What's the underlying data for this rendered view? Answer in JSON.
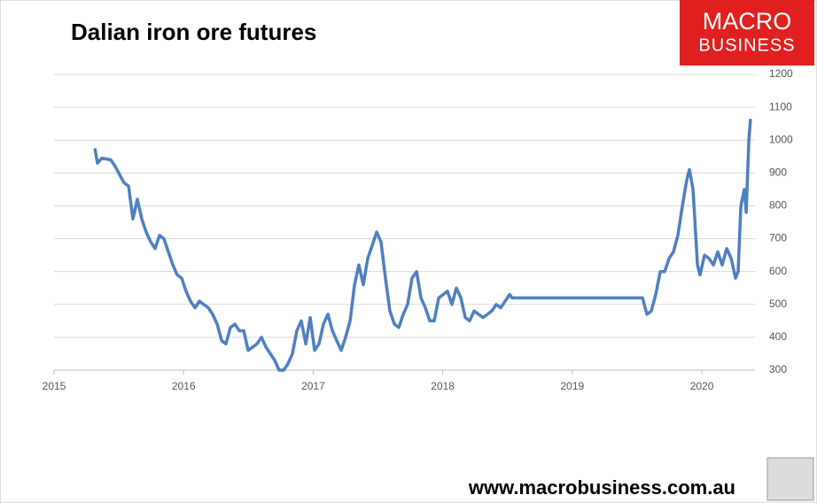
{
  "chart_data": {
    "type": "line",
    "title": "Dalian iron ore futures",
    "logo": [
      "MACRO",
      "BUSINESS"
    ],
    "source": "www.macrobusiness.com.au",
    "color": "#4f7fbf",
    "grid": true,
    "xlim": [
      2015,
      2020.41
    ],
    "xticks": [
      2015,
      2016,
      2017,
      2018,
      2019,
      2020
    ],
    "ylim": [
      300,
      1200
    ],
    "yticks": [
      300,
      400,
      500,
      600,
      700,
      800,
      900,
      1000,
      1100,
      1200
    ],
    "x": [
      2015.315,
      2015.335,
      2015.369,
      2015.438,
      2015.472,
      2015.54,
      2015.575,
      2015.609,
      2015.643,
      2015.677,
      2015.711,
      2015.746,
      2015.78,
      2015.814,
      2015.848,
      2015.882,
      2015.917,
      2015.951,
      2015.985,
      2016.019,
      2016.053,
      2016.088,
      2016.122,
      2016.156,
      2016.19,
      2016.224,
      2016.259,
      2016.293,
      2016.327,
      2016.361,
      2016.395,
      2016.43,
      2016.464,
      2016.498,
      2016.532,
      2016.566,
      2016.601,
      2016.635,
      2016.669,
      2016.703,
      2016.737,
      2016.772,
      2016.806,
      2016.84,
      2016.874,
      2016.908,
      2016.943,
      2016.977,
      2017.011,
      2017.045,
      2017.079,
      2017.114,
      2017.148,
      2017.182,
      2017.216,
      2017.25,
      2017.285,
      2017.319,
      2017.353,
      2017.387,
      2017.421,
      2017.456,
      2017.49,
      2017.524,
      2017.558,
      2017.592,
      2017.627,
      2017.661,
      2017.695,
      2017.729,
      2017.763,
      2017.798,
      2017.832,
      2017.866,
      2017.9,
      2017.934,
      2017.969,
      2018.003,
      2018.037,
      2018.071,
      2018.105,
      2018.14,
      2018.174,
      2018.208,
      2018.242,
      2018.276,
      2018.311,
      2018.345,
      2018.379,
      2018.413,
      2018.447,
      2018.482,
      2018.516,
      2018.536,
      2019.542,
      2019.576,
      2019.61,
      2019.644,
      2019.679,
      2019.713,
      2019.747,
      2019.781,
      2019.815,
      2019.85,
      2019.884,
      2019.904,
      2019.932,
      2019.966,
      2019.986,
      2020.021,
      2020.055,
      2020.089,
      2020.123,
      2020.157,
      2020.192,
      2020.226,
      2020.26,
      2020.28,
      2020.301,
      2020.328,
      2020.342,
      2020.363,
      2020.376
    ],
    "values": [
      975,
      930,
      945,
      940,
      920,
      870,
      860,
      760,
      820,
      760,
      720,
      690,
      670,
      710,
      700,
      660,
      620,
      590,
      580,
      540,
      510,
      490,
      510,
      500,
      490,
      470,
      440,
      390,
      380,
      430,
      440,
      420,
      420,
      360,
      370,
      380,
      400,
      370,
      350,
      330,
      300,
      300,
      320,
      350,
      420,
      450,
      380,
      460,
      360,
      380,
      440,
      470,
      420,
      390,
      360,
      400,
      450,
      560,
      620,
      560,
      640,
      680,
      720,
      690,
      580,
      480,
      440,
      430,
      470,
      500,
      580,
      600,
      520,
      490,
      450,
      450,
      520,
      530,
      540,
      500,
      550,
      520,
      460,
      450,
      480,
      470,
      460,
      470,
      480,
      500,
      490,
      510,
      530,
      520,
      520,
      470,
      480,
      530,
      600,
      600,
      640,
      660,
      710,
      800,
      880,
      910,
      850,
      620,
      590,
      650,
      640,
      620,
      660,
      620,
      670,
      640,
      580,
      600,
      800,
      850,
      780,
      1000,
      1065
    ]
  }
}
